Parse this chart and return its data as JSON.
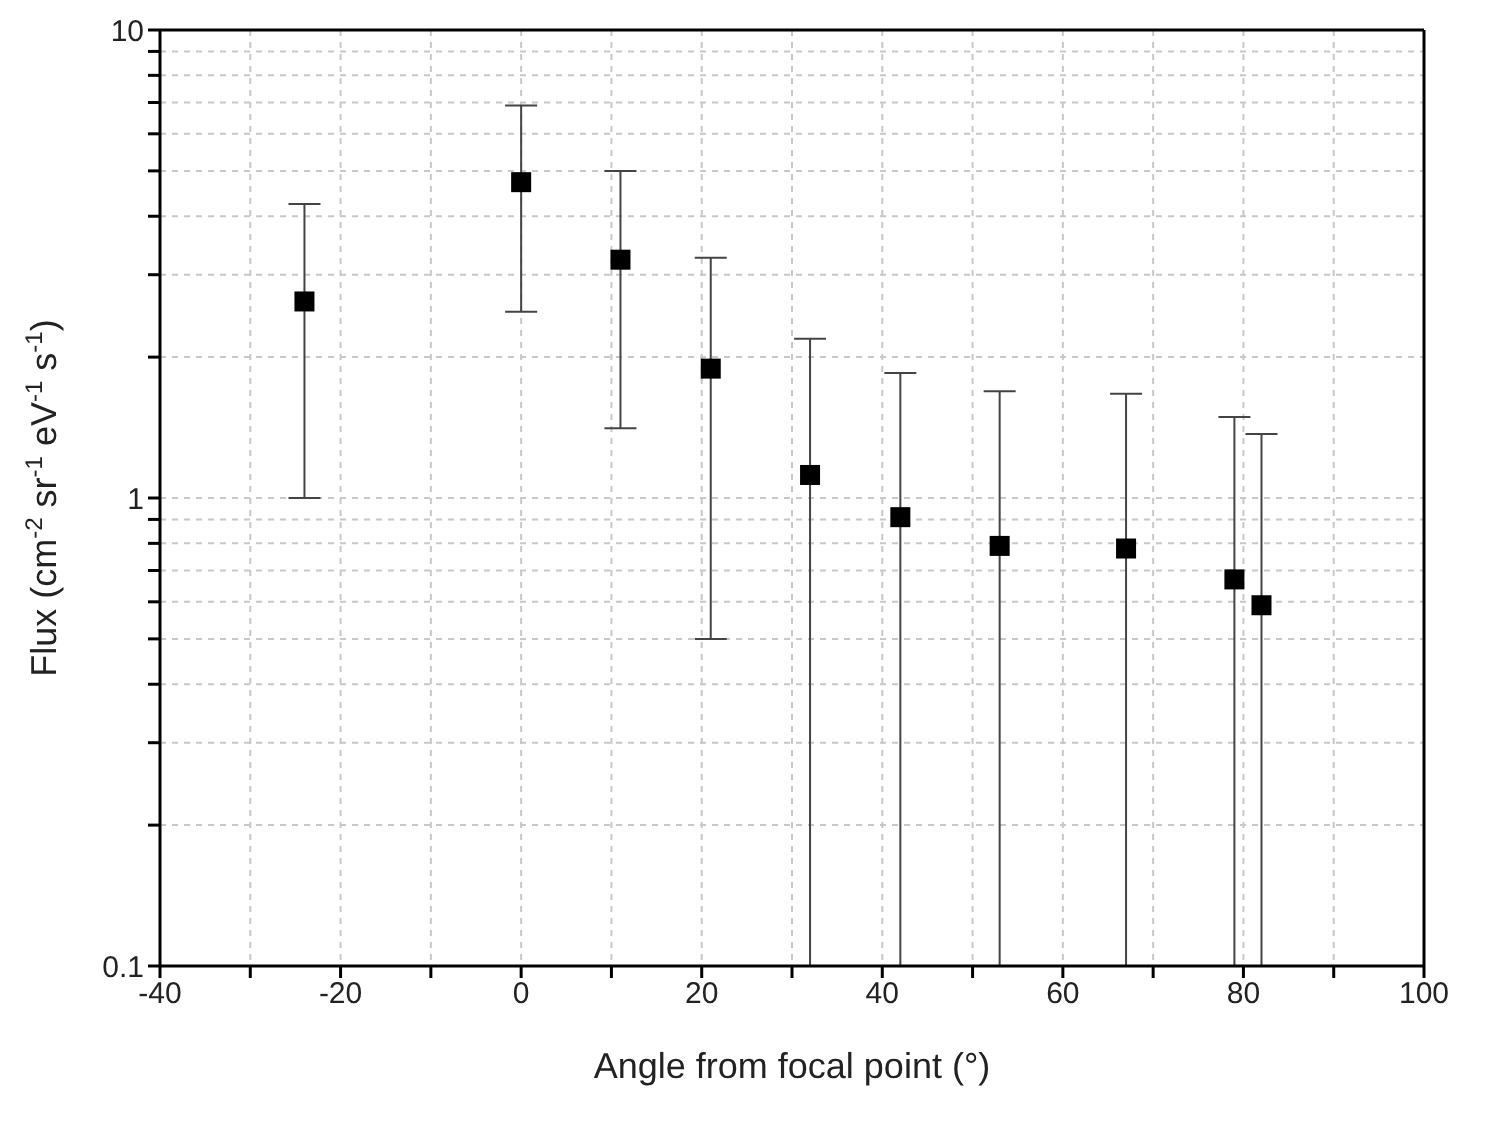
{
  "chart_data": {
    "type": "scatter",
    "xlabel": "Angle from focal point (°)",
    "ylabel": "Flux (cm$^{-2}$ sr$^{-1}$ eV$^{-1}$ s$^{-1}$)",
    "x": [
      -24,
      0,
      11,
      21,
      32,
      42,
      53,
      67,
      79,
      82
    ],
    "values": [
      2.63,
      4.73,
      3.23,
      1.89,
      1.12,
      0.91,
      0.79,
      0.78,
      0.67,
      0.59
    ],
    "errors": [
      [
        1.0,
        4.25
      ],
      [
        2.5,
        6.9
      ],
      [
        1.41,
        5.0
      ],
      [
        0.5,
        3.26
      ],
      [
        0.1,
        2.19
      ],
      [
        0.1,
        1.85
      ],
      [
        0.1,
        1.69
      ],
      [
        0.1,
        1.67
      ],
      [
        0.1,
        1.49
      ],
      [
        0.1,
        1.37
      ]
    ],
    "color": "#000000",
    "marker": "square",
    "log": "y",
    "grid": true,
    "legend": false,
    "xlim": [
      -40,
      100
    ],
    "xticks": [
      -40,
      {
        "value": -30,
        "label": null
      },
      -20,
      {
        "value": -10,
        "label": null
      },
      0,
      {
        "value": 10,
        "label": null
      },
      20,
      {
        "value": 30,
        "label": null
      },
      40,
      {
        "value": 50,
        "label": null
      },
      60,
      {
        "value": 70,
        "label": null
      },
      80,
      {
        "value": 90,
        "label": null
      },
      100
    ],
    "ylim": [
      0.1,
      10
    ],
    "yticks": [
      0.1,
      {
        "value": 0.2,
        "label": null
      },
      {
        "value": 0.3,
        "label": null
      },
      {
        "value": 0.4,
        "label": null
      },
      {
        "value": 0.5,
        "label": null
      },
      {
        "value": 0.6,
        "label": null
      },
      {
        "value": 0.7,
        "label": null
      },
      {
        "value": 0.8,
        "label": null
      },
      {
        "value": 0.9,
        "label": null
      },
      1,
      {
        "value": 2,
        "label": null
      },
      {
        "value": 3,
        "label": null
      },
      {
        "value": 4,
        "label": null
      },
      {
        "value": 5,
        "label": null
      },
      {
        "value": 6,
        "label": null
      },
      {
        "value": 7,
        "label": null
      },
      {
        "value": 8,
        "label": null
      },
      {
        "value": 9,
        "label": null
      },
      10
    ]
  }
}
